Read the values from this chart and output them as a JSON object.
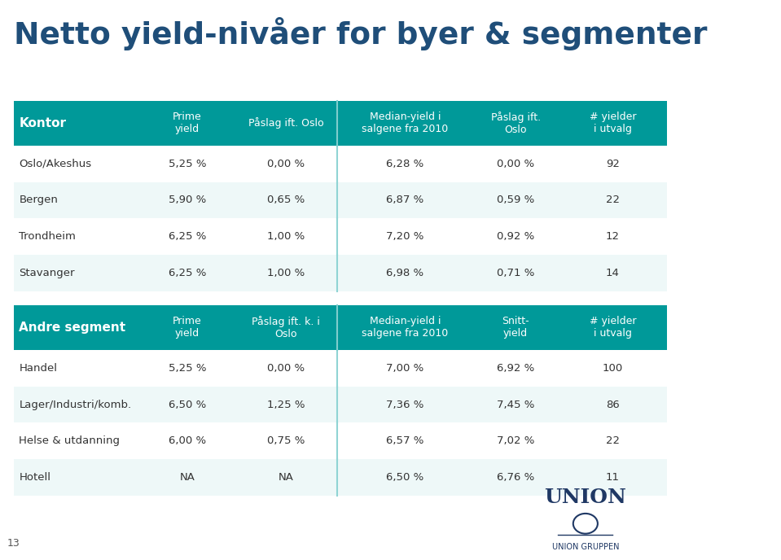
{
  "title": "Netto yield-nivåer for byer & segmenter",
  "title_color": "#1F4E79",
  "title_fontsize": 28,
  "background_color": "#FFFFFF",
  "teal_color": "#009999",
  "light_teal": "#B2DFDB",
  "row_alt_color": "#E8F4F4",
  "row_white": "#FFFFFF",
  "divider_color": "#7FCDCD",
  "text_dark": "#333333",
  "header_text": "#FFFFFF",
  "kontor_headers": [
    "Kontor",
    "Prime\nyield",
    "Påslag ift. Oslo",
    "Median-yield i\nsalgene fra 2010",
    "Påslag ift.\nOslo",
    "# yielder\ni utvalg"
  ],
  "kontor_rows": [
    [
      "Oslo/Akeshus",
      "5,25 %",
      "0,00 %",
      "6,28 %",
      "0,00 %",
      "92"
    ],
    [
      "Bergen",
      "5,90 %",
      "0,65 %",
      "6,87 %",
      "0,59 %",
      "22"
    ],
    [
      "Trondheim",
      "6,25 %",
      "1,00 %",
      "7,20 %",
      "0,92 %",
      "12"
    ],
    [
      "Stavanger",
      "6,25 %",
      "1,00 %",
      "6,98 %",
      "0,71 %",
      "14"
    ]
  ],
  "andre_headers": [
    "Andre segment",
    "Prime\nyield",
    "Påslag ift. k. i\nOslo",
    "Median-yield i\nsalgene fra 2010",
    "Snitt-\nyield",
    "# yielder\ni utvalg"
  ],
  "andre_rows": [
    [
      "Handel",
      "5,25 %",
      "0,00 %",
      "7,00 %",
      "6,92 %",
      "100"
    ],
    [
      "Lager/Industri/komb.",
      "6,50 %",
      "1,25 %",
      "7,36 %",
      "7,45 %",
      "86"
    ],
    [
      "Helse & utdanning",
      "6,00 %",
      "0,75 %",
      "6,57 %",
      "7,02 %",
      "22"
    ],
    [
      "Hotell",
      "NA",
      "NA",
      "6,50 %",
      "6,76 %",
      "11"
    ]
  ],
  "footer_num": "13",
  "logo_text": "UNION",
  "logo_sub": "UNION GRUPPEN"
}
